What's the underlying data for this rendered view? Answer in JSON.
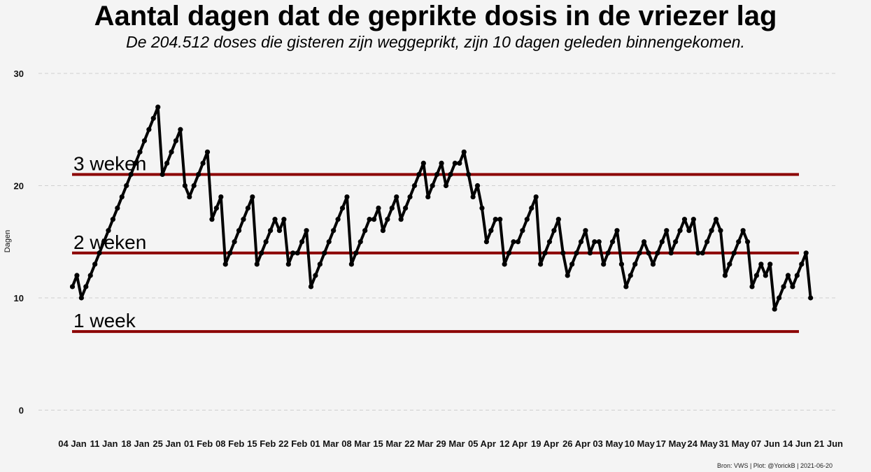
{
  "chart_data": {
    "type": "line",
    "title": "Aantal dagen dat de geprikte dosis in de vriezer lag",
    "subtitle": "De 204.512 doses die gisteren zijn weggeprikt, zijn 10 dagen geleden binnengekomen.",
    "ylabel": "Dagen",
    "xlabel": "",
    "ylim": [
      0,
      30
    ],
    "yticks": [
      0,
      10,
      20,
      30
    ],
    "grid": "horizontal dashed",
    "x_start_date": "2021-01-04",
    "xtick_labels": [
      "04 Jan",
      "11 Jan",
      "18 Jan",
      "25 Jan",
      "01 Feb",
      "08 Feb",
      "15 Feb",
      "22 Feb",
      "01 Mar",
      "08 Mar",
      "15 Mar",
      "22 Mar",
      "29 Mar",
      "05 Apr",
      "12 Apr",
      "19 Apr",
      "26 Apr",
      "03 May",
      "10 May",
      "17 May",
      "24 May",
      "31 May",
      "07 Jun",
      "14 Jun",
      "21 Jun"
    ],
    "reference_lines": [
      {
        "label": "3 weken",
        "value": 21,
        "color": "#8b0000"
      },
      {
        "label": "2 weken",
        "value": 14,
        "color": "#8b0000"
      },
      {
        "label": "1 week",
        "value": 7,
        "color": "#8b0000"
      }
    ],
    "series": [
      {
        "color": "#000000",
        "values": [
          11,
          12,
          10,
          11,
          12,
          13,
          14,
          15,
          16,
          17,
          18,
          19,
          20,
          21,
          22,
          23,
          24,
          25,
          26,
          27,
          21,
          22,
          23,
          24,
          25,
          20,
          19,
          20,
          21,
          22,
          23,
          17,
          18,
          19,
          13,
          14,
          15,
          16,
          17,
          18,
          19,
          13,
          14,
          15,
          16,
          17,
          16,
          17,
          13,
          14,
          14,
          15,
          16,
          11,
          12,
          13,
          14,
          15,
          16,
          17,
          18,
          19,
          13,
          14,
          15,
          16,
          17,
          17,
          18,
          16,
          17,
          18,
          19,
          17,
          18,
          19,
          20,
          21,
          22,
          19,
          20,
          21,
          22,
          20,
          21,
          22,
          22,
          23,
          21,
          19,
          20,
          18,
          15,
          16,
          17,
          17,
          13,
          14,
          15,
          15,
          16,
          17,
          18,
          19,
          13,
          14,
          15,
          16,
          17,
          14,
          12,
          13,
          14,
          15,
          16,
          14,
          15,
          15,
          13,
          14,
          15,
          16,
          13,
          11,
          12,
          13,
          14,
          15,
          14,
          13,
          14,
          15,
          16,
          14,
          15,
          16,
          17,
          16,
          17,
          14,
          14,
          15,
          16,
          17,
          16,
          12,
          13,
          14,
          15,
          16,
          15,
          11,
          12,
          13,
          12,
          13,
          9,
          10,
          11,
          12,
          11,
          12,
          13,
          14,
          10
        ]
      }
    ]
  },
  "caption": "Bron: VWS | Plot: @YorickB  |  2021-06-20",
  "colors": {
    "background": "#f4f4f4",
    "reference": "#8b0000",
    "line": "#000000",
    "grid": "#cfcfcf"
  }
}
